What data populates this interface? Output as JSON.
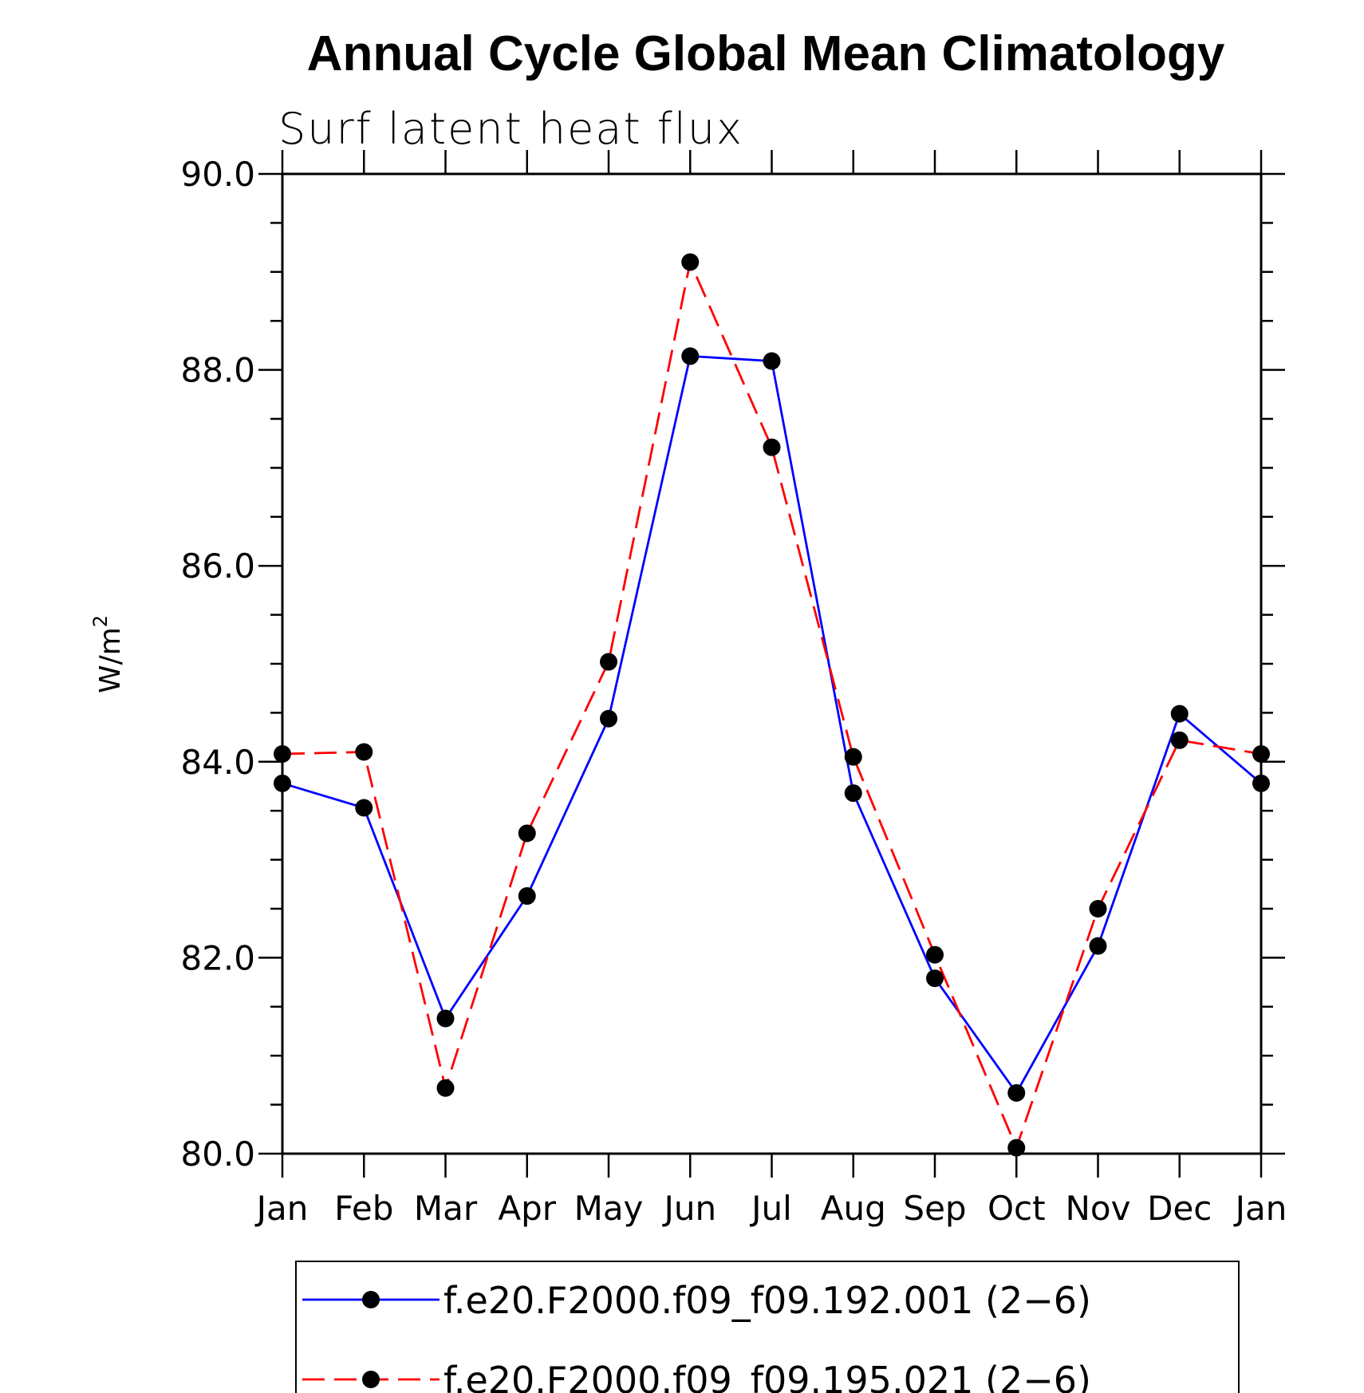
{
  "chart_data": {
    "type": "line",
    "title": "Annual Cycle Global Mean Climatology",
    "subtitle": "Surf latent heat flux",
    "xlabel": "",
    "ylabel": "W/m",
    "ylabel_superscript": "2",
    "categories": [
      "Jan",
      "Feb",
      "Mar",
      "Apr",
      "May",
      "Jun",
      "Jul",
      "Aug",
      "Sep",
      "Oct",
      "Nov",
      "Dec",
      "Jan"
    ],
    "ylim": [
      80.0,
      90.0
    ],
    "yticks": [
      "80.0",
      "82.0",
      "84.0",
      "86.0",
      "88.0",
      "90.0"
    ],
    "ytick_values": [
      80,
      82,
      84,
      86,
      88,
      90
    ],
    "series": [
      {
        "name": "f.e20.F2000.f09_f09.192.001 (2−6)",
        "color": "#0000ff",
        "dash": "solid",
        "values": [
          83.78,
          83.53,
          81.38,
          82.63,
          84.44,
          88.14,
          88.09,
          83.68,
          81.79,
          80.62,
          82.12,
          84.49,
          83.78
        ]
      },
      {
        "name": "f.e20.F2000.f09_f09.195.021 (2−6)",
        "color": "#ff0000",
        "dash": "dashed",
        "values": [
          84.08,
          84.1,
          80.67,
          83.27,
          85.02,
          89.1,
          87.21,
          84.05,
          82.03,
          80.06,
          82.5,
          84.22,
          84.08
        ]
      }
    ],
    "legend_position": "bottom-center",
    "grid": false
  }
}
